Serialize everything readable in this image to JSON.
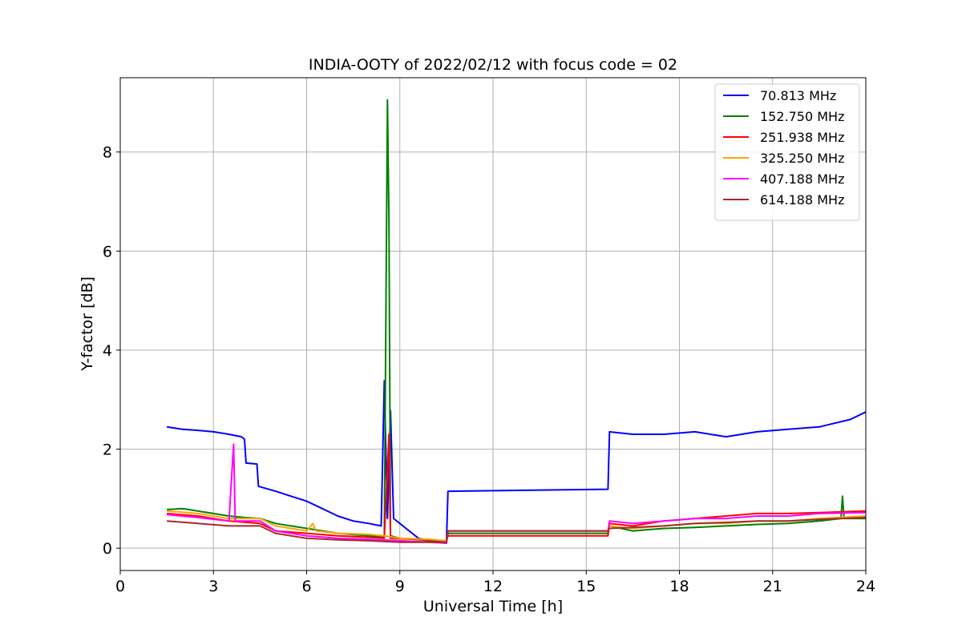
{
  "chart_data": {
    "type": "line",
    "title": "INDIA-OOTY of 2022/02/12 with focus code = 02",
    "xlabel": "Universal Time [h]",
    "ylabel": "Y-factor [dB]",
    "xlim": [
      0,
      24
    ],
    "ylim": [
      -0.45,
      9.5
    ],
    "xticks": [
      0,
      3,
      6,
      9,
      12,
      15,
      18,
      21,
      24
    ],
    "yticks": [
      0,
      2,
      4,
      6,
      8
    ],
    "grid": true,
    "legend_position": "top-right",
    "series": [
      {
        "name": " 70.813 MHz",
        "color": "#0000ff",
        "points": [
          [
            1.5,
            2.45
          ],
          [
            2.0,
            2.4
          ],
          [
            2.5,
            2.38
          ],
          [
            3.0,
            2.35
          ],
          [
            3.5,
            2.3
          ],
          [
            3.9,
            2.25
          ],
          [
            4.0,
            2.2
          ],
          [
            4.05,
            1.72
          ],
          [
            4.4,
            1.7
          ],
          [
            4.45,
            1.25
          ],
          [
            5.0,
            1.15
          ],
          [
            5.5,
            1.05
          ],
          [
            6.0,
            0.95
          ],
          [
            6.5,
            0.8
          ],
          [
            7.0,
            0.65
          ],
          [
            7.5,
            0.55
          ],
          [
            8.0,
            0.5
          ],
          [
            8.4,
            0.45
          ],
          [
            8.5,
            3.38
          ],
          [
            8.6,
            0.6
          ],
          [
            8.7,
            2.78
          ],
          [
            8.8,
            0.6
          ],
          [
            9.0,
            0.5
          ],
          [
            9.3,
            0.35
          ],
          [
            9.6,
            0.2
          ],
          [
            10.0,
            0.15
          ],
          [
            10.3,
            0.15
          ],
          [
            10.5,
            0.12
          ],
          [
            10.55,
            1.15
          ],
          [
            15.7,
            1.19
          ],
          [
            15.75,
            2.35
          ],
          [
            16.5,
            2.3
          ],
          [
            17.5,
            2.3
          ],
          [
            18.5,
            2.35
          ],
          [
            19.5,
            2.25
          ],
          [
            20.5,
            2.35
          ],
          [
            21.5,
            2.4
          ],
          [
            22.5,
            2.45
          ],
          [
            23.5,
            2.6
          ],
          [
            24.0,
            2.75
          ]
        ]
      },
      {
        "name": "152.750 MHz",
        "color": "#008000",
        "points": [
          [
            1.5,
            0.78
          ],
          [
            2.0,
            0.8
          ],
          [
            2.5,
            0.75
          ],
          [
            3.0,
            0.7
          ],
          [
            3.5,
            0.65
          ],
          [
            4.0,
            0.62
          ],
          [
            4.5,
            0.6
          ],
          [
            5.0,
            0.5
          ],
          [
            6.0,
            0.4
          ],
          [
            7.0,
            0.3
          ],
          [
            8.0,
            0.25
          ],
          [
            8.5,
            0.22
          ],
          [
            8.6,
            9.05
          ],
          [
            8.65,
            6.6
          ],
          [
            8.7,
            0.25
          ],
          [
            9.0,
            0.2
          ],
          [
            10.0,
            0.15
          ],
          [
            10.5,
            0.1
          ],
          [
            10.55,
            0.3
          ],
          [
            15.7,
            0.3
          ],
          [
            15.75,
            0.45
          ],
          [
            16.5,
            0.35
          ],
          [
            17.5,
            0.4
          ],
          [
            18.5,
            0.42
          ],
          [
            19.5,
            0.45
          ],
          [
            20.5,
            0.48
          ],
          [
            21.5,
            0.5
          ],
          [
            22.5,
            0.55
          ],
          [
            23.2,
            0.6
          ],
          [
            23.25,
            1.05
          ],
          [
            23.3,
            0.6
          ],
          [
            24.0,
            0.6
          ]
        ]
      },
      {
        "name": "251.938 MHz",
        "color": "#ff0000",
        "points": [
          [
            1.5,
            0.7
          ],
          [
            2.5,
            0.65
          ],
          [
            3.5,
            0.55
          ],
          [
            4.5,
            0.5
          ],
          [
            5.0,
            0.35
          ],
          [
            6.0,
            0.3
          ],
          [
            7.0,
            0.25
          ],
          [
            8.0,
            0.22
          ],
          [
            8.5,
            0.2
          ],
          [
            8.65,
            2.3
          ],
          [
            8.7,
            0.2
          ],
          [
            9.5,
            0.18
          ],
          [
            10.5,
            0.15
          ],
          [
            10.55,
            0.25
          ],
          [
            15.7,
            0.25
          ],
          [
            15.75,
            0.5
          ],
          [
            16.5,
            0.45
          ],
          [
            17.5,
            0.55
          ],
          [
            18.5,
            0.6
          ],
          [
            19.5,
            0.65
          ],
          [
            20.5,
            0.7
          ],
          [
            21.5,
            0.7
          ],
          [
            22.5,
            0.72
          ],
          [
            24.0,
            0.75
          ]
        ]
      },
      {
        "name": "325.250 MHz",
        "color": "#ffa500",
        "points": [
          [
            1.5,
            0.75
          ],
          [
            2.5,
            0.7
          ],
          [
            3.5,
            0.6
          ],
          [
            4.5,
            0.6
          ],
          [
            5.0,
            0.45
          ],
          [
            6.0,
            0.35
          ],
          [
            6.2,
            0.5
          ],
          [
            6.3,
            0.35
          ],
          [
            7.0,
            0.3
          ],
          [
            8.0,
            0.28
          ],
          [
            8.5,
            0.25
          ],
          [
            9.0,
            0.2
          ],
          [
            10.0,
            0.18
          ],
          [
            10.5,
            0.15
          ],
          [
            10.55,
            0.35
          ],
          [
            15.7,
            0.35
          ],
          [
            15.75,
            0.45
          ],
          [
            16.5,
            0.4
          ],
          [
            17.5,
            0.45
          ],
          [
            18.5,
            0.5
          ],
          [
            19.5,
            0.5
          ],
          [
            20.5,
            0.55
          ],
          [
            21.5,
            0.55
          ],
          [
            22.5,
            0.6
          ],
          [
            24.0,
            0.65
          ]
        ]
      },
      {
        "name": "407.188 MHz",
        "color": "#ff00ff",
        "points": [
          [
            1.5,
            0.68
          ],
          [
            2.5,
            0.62
          ],
          [
            3.5,
            0.55
          ],
          [
            3.65,
            2.1
          ],
          [
            3.7,
            0.55
          ],
          [
            4.5,
            0.55
          ],
          [
            5.0,
            0.35
          ],
          [
            6.0,
            0.25
          ],
          [
            7.0,
            0.2
          ],
          [
            8.0,
            0.18
          ],
          [
            9.0,
            0.15
          ],
          [
            10.0,
            0.12
          ],
          [
            10.5,
            0.1
          ],
          [
            10.55,
            0.35
          ],
          [
            15.7,
            0.35
          ],
          [
            15.75,
            0.55
          ],
          [
            16.5,
            0.5
          ],
          [
            17.5,
            0.55
          ],
          [
            18.5,
            0.6
          ],
          [
            19.5,
            0.6
          ],
          [
            20.5,
            0.65
          ],
          [
            21.5,
            0.65
          ],
          [
            22.5,
            0.7
          ],
          [
            24.0,
            0.72
          ]
        ]
      },
      {
        "name": "614.188 MHz",
        "color": "#a52a2a",
        "points": [
          [
            1.5,
            0.55
          ],
          [
            2.5,
            0.5
          ],
          [
            3.5,
            0.45
          ],
          [
            4.5,
            0.45
          ],
          [
            5.0,
            0.3
          ],
          [
            6.0,
            0.2
          ],
          [
            7.0,
            0.17
          ],
          [
            8.0,
            0.15
          ],
          [
            9.0,
            0.12
          ],
          [
            10.0,
            0.12
          ],
          [
            10.5,
            0.12
          ],
          [
            10.55,
            0.35
          ],
          [
            15.7,
            0.35
          ],
          [
            15.75,
            0.4
          ],
          [
            16.5,
            0.42
          ],
          [
            17.5,
            0.45
          ],
          [
            18.5,
            0.5
          ],
          [
            19.5,
            0.52
          ],
          [
            20.5,
            0.55
          ],
          [
            21.5,
            0.55
          ],
          [
            22.5,
            0.58
          ],
          [
            24.0,
            0.62
          ]
        ]
      }
    ]
  }
}
